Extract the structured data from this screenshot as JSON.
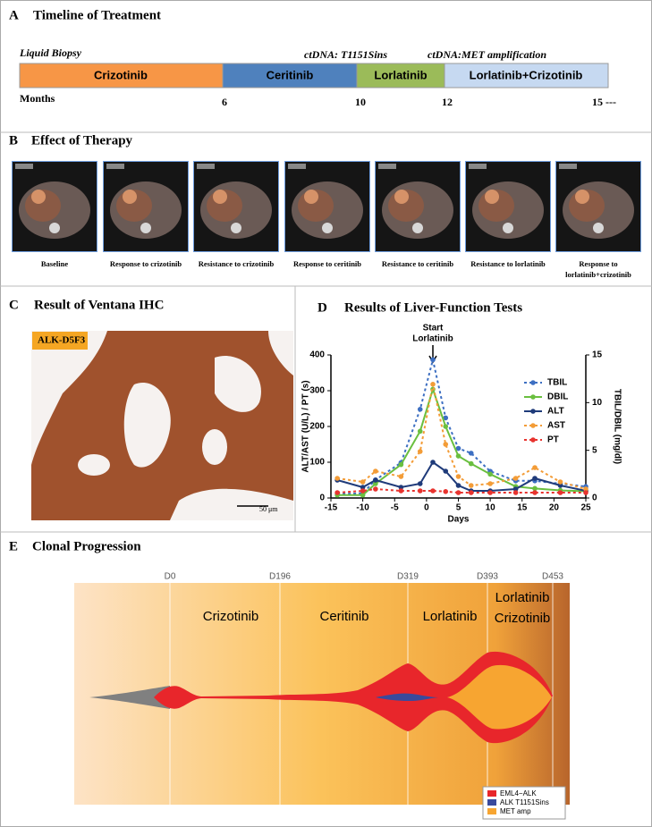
{
  "panel_a": {
    "label": "A",
    "title": "Timeline of Treatment",
    "liquid_biopsy": "Liquid Biopsy",
    "annotations": [
      "ctDNA: T1151Sins",
      "ctDNA:MET amplification"
    ],
    "segments": [
      "Crizotinib",
      "Ceritinib",
      "Lorlatinib",
      "Lorlatinib+Crizotinib"
    ],
    "axis_label": "Months",
    "ticks": [
      "6",
      "10",
      "12",
      "15 ---"
    ]
  },
  "panel_b": {
    "label": "B",
    "title": "Effect of Therapy",
    "captions": [
      [
        "Baseline"
      ],
      [
        "Response to crizotinib"
      ],
      [
        "Resistance to crizotinib"
      ],
      [
        "Response to ceritinib"
      ],
      [
        "Resistance to ceritinib"
      ],
      [
        "Resistance to lorlatinib"
      ],
      [
        "Response  to",
        "lorlatinib+crizotinib"
      ]
    ]
  },
  "panel_c": {
    "label": "C",
    "title": "Result of Ventana IHC",
    "stain_label": "ALK-D5F3",
    "scale_bar": "50 μm"
  },
  "panel_d": {
    "label": "D"
  },
  "chart_data": {
    "type": "line",
    "title": "Results of Liver-Function Tests",
    "annotation": {
      "lines": [
        "Start",
        "Lorlatinib"
      ],
      "x": 1
    },
    "x": [
      -14,
      -10,
      -8,
      -4,
      -1,
      1,
      3,
      5,
      7,
      10,
      14,
      17,
      21,
      25
    ],
    "xlim": [
      -15,
      25
    ],
    "xticks": [
      -15,
      -10,
      -5,
      0,
      5,
      10,
      15,
      20,
      25
    ],
    "ylim": [
      0,
      400
    ],
    "yticks": [
      0,
      100,
      200,
      300,
      400
    ],
    "y2lim": [
      0,
      15
    ],
    "y2ticks": [
      0,
      5,
      10,
      15
    ],
    "xlabel": "Days",
    "ylabel": "ALT/AST  (U/L) / PT (s)",
    "y2label": "TBIL/DBIL (mg/dl)",
    "series": [
      {
        "name": "TBIL",
        "color": "#3d6fc2",
        "dashed": true,
        "axis": "y2",
        "values": [
          0.4,
          0.5,
          1.9,
          3.7,
          9.3,
          14.5,
          8.4,
          5.2,
          4.7,
          2.8,
          1.8,
          1.8,
          1.5,
          1.2
        ]
      },
      {
        "name": "DBIL",
        "color": "#6abf3f",
        "dashed": false,
        "axis": "y2",
        "values": [
          0.3,
          0.3,
          1.5,
          3.5,
          7,
          11.4,
          7.5,
          4.4,
          3.6,
          2.5,
          1.2,
          1,
          0.8,
          0.7
        ]
      },
      {
        "name": "ALT",
        "color": "#1f3b7a",
        "dashed": false,
        "values": [
          50,
          30,
          50,
          30,
          40,
          100,
          75,
          35,
          20,
          20,
          25,
          55,
          35,
          20
        ]
      },
      {
        "name": "AST",
        "color": "#f39c37",
        "dashed": true,
        "values": [
          55,
          45,
          75,
          60,
          130,
          318,
          150,
          60,
          35,
          40,
          55,
          85,
          45,
          25
        ]
      },
      {
        "name": "PT",
        "color": "#e8342f",
        "dashed": true,
        "values": [
          15,
          20,
          25,
          20,
          20,
          20,
          18,
          15,
          15,
          15,
          15,
          15,
          15,
          15
        ]
      }
    ]
  },
  "panel_e": {
    "label": "E",
    "title": "Clonal Progression",
    "timepoints": [
      "D0",
      "D196",
      "D319",
      "D393",
      "D453"
    ],
    "phases": [
      "Crizotinib",
      "Ceritinib",
      "Lorlatinib",
      "Lorlatinib",
      "Crizotinib"
    ],
    "legend": [
      "EML4−ALK",
      "ALK T1151Sins",
      "MET amp"
    ]
  }
}
